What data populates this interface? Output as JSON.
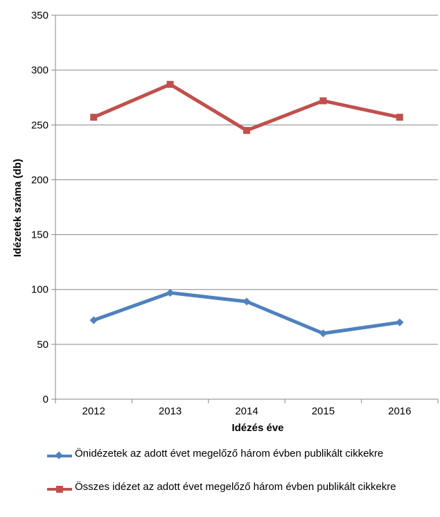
{
  "chart_data": {
    "type": "line",
    "categories": [
      "2012",
      "2013",
      "2014",
      "2015",
      "2016"
    ],
    "series": [
      {
        "name": "Önidézetek az adott évet megelőző három évben publikált cikkekre",
        "values": [
          72,
          97,
          89,
          60,
          70
        ],
        "color": "#4f81bd",
        "marker": "diamond"
      },
      {
        "name": "Összes idézet az adott évet megelőző három évben publikált cikkekre",
        "values": [
          257,
          287,
          245,
          272,
          257
        ],
        "color": "#c0504d",
        "marker": "square"
      }
    ],
    "xlabel": "Idézés éve",
    "ylabel": "Idézetek száma (db)",
    "ylim": [
      0,
      350
    ],
    "yticks": [
      "0",
      "50",
      "100",
      "150",
      "200",
      "250",
      "300",
      "350"
    ],
    "grid": true,
    "legend_position": "bottom"
  }
}
